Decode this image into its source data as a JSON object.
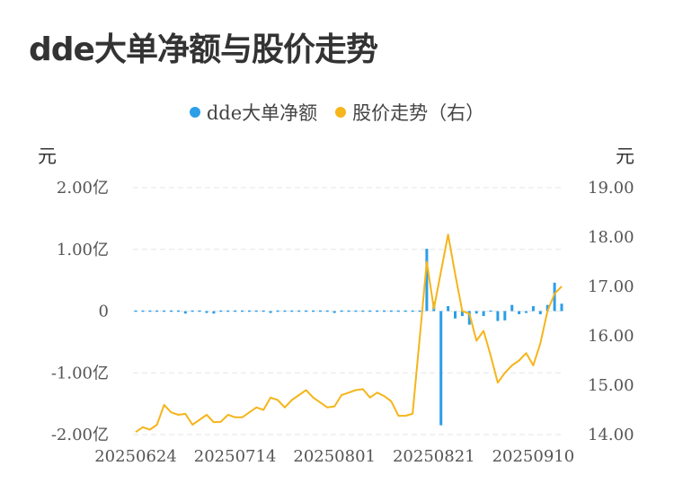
{
  "title": "dde大单净额与股价走势",
  "units": {
    "left": "元",
    "right": "元"
  },
  "colors": {
    "dde": "#2b9ee8",
    "price": "#f5b51b",
    "grid": "#e6e6e6",
    "text": "#555555"
  },
  "chart_data": {
    "type": "bar+line",
    "legend": [
      {
        "name": "dde大单净额",
        "color": "#2b9ee8",
        "shape": "dot"
      },
      {
        "name": "股价走势（右）",
        "color": "#f5b51b",
        "shape": "dot"
      }
    ],
    "legend_position": "top-center",
    "grid": true,
    "x_tick_labels": [
      "20250624",
      "20250714",
      "20250801",
      "20250821",
      "20250910"
    ],
    "x_tick_index": [
      0,
      14,
      28,
      42,
      56
    ],
    "y_left": {
      "ticks": [
        2,
        1,
        0,
        -1,
        -2
      ],
      "tick_labels": [
        "2.00亿",
        "1.00亿",
        "0",
        "-1.00亿",
        "-2.00亿"
      ],
      "range": [
        -2,
        2
      ],
      "unit": "亿元"
    },
    "y_right": {
      "ticks": [
        19,
        18,
        17,
        16,
        15,
        14
      ],
      "tick_labels": [
        "19.00",
        "18.00",
        "17.00",
        "16.00",
        "15.00",
        "14.00"
      ],
      "range": [
        14,
        19
      ]
    },
    "dde_series": {
      "name": "dde大单净额",
      "values": [
        0.01,
        -0.01,
        -0.01,
        0.0,
        -0.02,
        0.02,
        -0.01,
        -0.04,
        -0.02,
        -0.02,
        -0.03,
        -0.04,
        0.0,
        -0.02,
        -0.01,
        -0.01,
        -0.01,
        0.01,
        -0.01,
        -0.03,
        0.02,
        0.0,
        -0.01,
        0.01,
        0.0,
        -0.01,
        -0.02,
        -0.01,
        -0.03,
        -0.01,
        -0.01,
        -0.01,
        0.01,
        -0.01,
        -0.01,
        -0.01,
        -0.02,
        -0.01,
        0.0,
        -0.01,
        0.01,
        1.01,
        0.15,
        -1.85,
        0.08,
        -0.12,
        -0.08,
        -0.22,
        -0.04,
        -0.08,
        -0.02,
        -0.16,
        -0.15,
        0.1,
        -0.05,
        -0.03,
        0.08,
        -0.05,
        0.1,
        0.46,
        0.12
      ]
    },
    "price_series": {
      "name": "股价走势（右）",
      "values": [
        14.05,
        14.15,
        14.1,
        14.2,
        14.6,
        14.45,
        14.4,
        14.42,
        14.2,
        14.3,
        14.4,
        14.25,
        14.26,
        14.4,
        14.35,
        14.35,
        14.45,
        14.55,
        14.5,
        14.75,
        14.7,
        14.55,
        14.7,
        14.8,
        14.9,
        14.75,
        14.65,
        14.55,
        14.57,
        14.8,
        14.85,
        14.9,
        14.92,
        14.75,
        14.85,
        14.78,
        14.67,
        14.38,
        14.38,
        14.42,
        15.95,
        17.5,
        16.55,
        17.3,
        18.05,
        17.25,
        16.5,
        16.45,
        15.9,
        16.1,
        15.6,
        15.05,
        15.25,
        15.4,
        15.5,
        15.65,
        15.4,
        15.85,
        16.5,
        16.85,
        17.0
      ]
    }
  }
}
